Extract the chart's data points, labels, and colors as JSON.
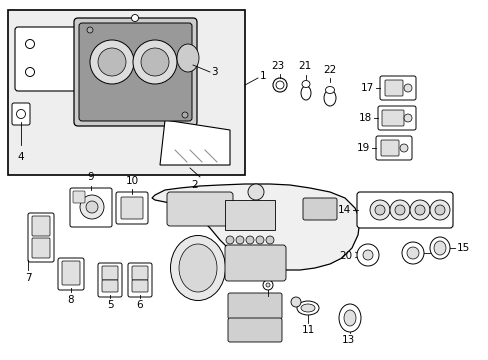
{
  "bg": "#ffffff",
  "lc": "#000000",
  "gray_light": "#cccccc",
  "gray_med": "#aaaaaa",
  "gray_dark": "#888888",
  "inset_fill": "#eeeeee",
  "figsize": [
    4.89,
    3.6
  ],
  "dpi": 100
}
